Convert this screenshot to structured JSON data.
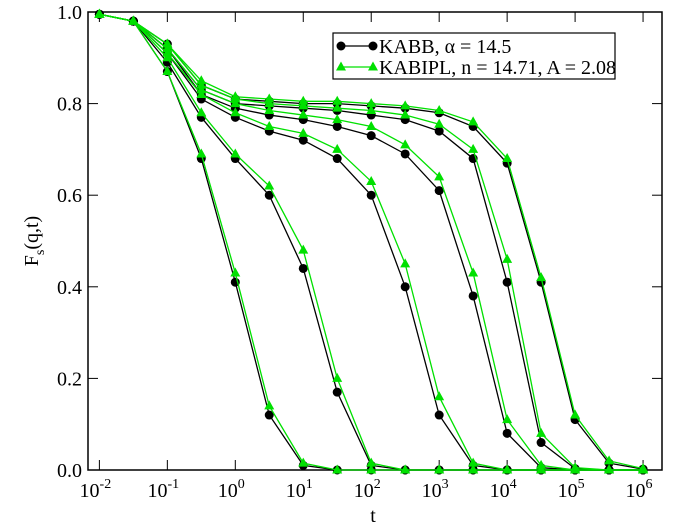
{
  "chart_data": {
    "type": "line",
    "xlabel": "t",
    "ylabel": [
      "F",
      "s",
      "(q,t)"
    ],
    "xscale": "log",
    "xlim": [
      0.0068,
      1900000
    ],
    "ylim": [
      0,
      1
    ],
    "xticks": [
      {
        "value": 0.01,
        "label": "10",
        "exp": "-2"
      },
      {
        "value": 0.1,
        "label": "10",
        "exp": "-1"
      },
      {
        "value": 1,
        "label": "10",
        "exp": "0"
      },
      {
        "value": 10,
        "label": "10",
        "exp": "1"
      },
      {
        "value": 100,
        "label": "10",
        "exp": "2"
      },
      {
        "value": 1000,
        "label": "10",
        "exp": "3"
      },
      {
        "value": 10000,
        "label": "10",
        "exp": "4"
      },
      {
        "value": 100000,
        "label": "10",
        "exp": "5"
      },
      {
        "value": 1000000,
        "label": "10",
        "exp": "6"
      }
    ],
    "yticks": [
      {
        "value": 0,
        "label": "0.0"
      },
      0.2,
      0.4,
      0.6,
      0.8,
      {
        "value": 1,
        "label": "1.0"
      }
    ],
    "legend": "upper right",
    "x": [
      0.01,
      0.0316,
      0.1,
      0.316,
      1,
      3.16,
      10,
      31.6,
      100,
      316,
      1000,
      3160,
      10000,
      31600,
      100000,
      316000,
      1000000
    ],
    "series": [
      {
        "name": "KABB, α = 14.5",
        "color": "#000000",
        "marker": "circle",
        "curves": [
          [
            0.995,
            0.98,
            0.87,
            0.68,
            0.41,
            0.12,
            0.01,
            0,
            0,
            0,
            0,
            0,
            0,
            0,
            0,
            0,
            0
          ],
          [
            0.995,
            0.98,
            0.89,
            0.77,
            0.68,
            0.6,
            0.44,
            0.17,
            0.01,
            0,
            0,
            0,
            0,
            0,
            0,
            0,
            0
          ],
          [
            0.995,
            0.98,
            0.91,
            0.81,
            0.77,
            0.74,
            0.72,
            0.68,
            0.6,
            0.4,
            0.12,
            0.01,
            0,
            0,
            0,
            0,
            0
          ],
          [
            0.995,
            0.98,
            0.92,
            0.82,
            0.79,
            0.775,
            0.765,
            0.75,
            0.73,
            0.69,
            0.61,
            0.38,
            0.08,
            0.005,
            0,
            0,
            0
          ],
          [
            0.995,
            0.98,
            0.92,
            0.83,
            0.8,
            0.795,
            0.79,
            0.785,
            0.775,
            0.765,
            0.74,
            0.68,
            0.41,
            0.06,
            0.003,
            0,
            0
          ],
          [
            0.995,
            0.98,
            0.93,
            0.84,
            0.81,
            0.805,
            0.8,
            0.8,
            0.795,
            0.79,
            0.78,
            0.75,
            0.67,
            0.41,
            0.11,
            0.015,
            0.002
          ]
        ]
      },
      {
        "name": "KABIPL, n = 14.71, A = 2.08",
        "color": "#00e000",
        "marker": "triangle",
        "curves": [
          [
            0.995,
            0.98,
            0.87,
            0.69,
            0.43,
            0.14,
            0.015,
            0,
            0,
            0,
            0,
            0,
            0,
            0,
            0,
            0,
            0
          ],
          [
            0.995,
            0.98,
            0.9,
            0.78,
            0.69,
            0.62,
            0.48,
            0.2,
            0.015,
            0,
            0,
            0,
            0,
            0,
            0,
            0,
            0
          ],
          [
            0.995,
            0.98,
            0.91,
            0.82,
            0.78,
            0.75,
            0.735,
            0.7,
            0.63,
            0.45,
            0.16,
            0.015,
            0,
            0,
            0,
            0,
            0
          ],
          [
            0.995,
            0.98,
            0.92,
            0.83,
            0.8,
            0.785,
            0.775,
            0.765,
            0.75,
            0.71,
            0.64,
            0.43,
            0.11,
            0.01,
            0,
            0,
            0
          ],
          [
            0.995,
            0.98,
            0.93,
            0.84,
            0.81,
            0.8,
            0.795,
            0.79,
            0.785,
            0.775,
            0.755,
            0.7,
            0.46,
            0.08,
            0.005,
            0,
            0
          ],
          [
            0.995,
            0.98,
            0.93,
            0.85,
            0.815,
            0.81,
            0.805,
            0.805,
            0.8,
            0.795,
            0.785,
            0.76,
            0.68,
            0.42,
            0.12,
            0.02,
            0.003
          ]
        ]
      }
    ]
  }
}
